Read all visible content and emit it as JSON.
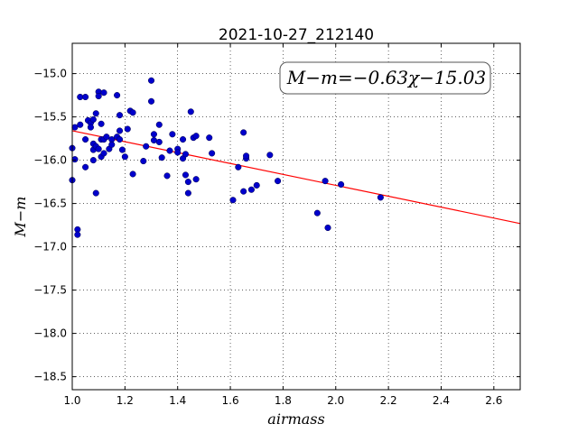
{
  "chart_data": {
    "type": "scatter",
    "title": "2021-10-27_212140",
    "xlabel": "airmass",
    "ylabel": "M−m",
    "xlim": [
      1.0,
      2.7
    ],
    "ylim": [
      -18.65,
      -14.65
    ],
    "y_inverted": true,
    "x_ticks": [
      "1.0",
      "1.2",
      "1.4",
      "1.6",
      "1.8",
      "2.0",
      "2.2",
      "2.4",
      "2.6"
    ],
    "y_ticks": [
      "−15.0",
      "−15.5",
      "−16.0",
      "−16.5",
      "−17.0",
      "−17.5",
      "−18.0",
      "−18.5"
    ],
    "grid": true,
    "annotation": "M−m=−0.63χ−15.03",
    "fit_line": {
      "slope": -0.63,
      "intercept": -15.03,
      "color": "#ff0000"
    },
    "point_color": "#0000cc",
    "points": [
      {
        "x": 1.0,
        "y": -15.86
      },
      {
        "x": 1.0,
        "y": -16.23
      },
      {
        "x": 1.01,
        "y": -15.99
      },
      {
        "x": 1.01,
        "y": -15.62
      },
      {
        "x": 1.02,
        "y": -16.8
      },
      {
        "x": 1.02,
        "y": -16.86
      },
      {
        "x": 1.03,
        "y": -15.27
      },
      {
        "x": 1.03,
        "y": -15.59
      },
      {
        "x": 1.05,
        "y": -15.27
      },
      {
        "x": 1.05,
        "y": -15.76
      },
      {
        "x": 1.05,
        "y": -16.08
      },
      {
        "x": 1.06,
        "y": -15.54
      },
      {
        "x": 1.07,
        "y": -15.57
      },
      {
        "x": 1.07,
        "y": -15.62
      },
      {
        "x": 1.08,
        "y": -15.53
      },
      {
        "x": 1.08,
        "y": -15.81
      },
      {
        "x": 1.08,
        "y": -15.88
      },
      {
        "x": 1.08,
        "y": -16.0
      },
      {
        "x": 1.09,
        "y": -15.46
      },
      {
        "x": 1.09,
        "y": -15.84
      },
      {
        "x": 1.09,
        "y": -16.38
      },
      {
        "x": 1.1,
        "y": -15.21
      },
      {
        "x": 1.1,
        "y": -15.26
      },
      {
        "x": 1.1,
        "y": -15.87
      },
      {
        "x": 1.11,
        "y": -15.58
      },
      {
        "x": 1.11,
        "y": -15.76
      },
      {
        "x": 1.11,
        "y": -15.96
      },
      {
        "x": 1.12,
        "y": -15.22
      },
      {
        "x": 1.12,
        "y": -15.76
      },
      {
        "x": 1.12,
        "y": -15.92
      },
      {
        "x": 1.13,
        "y": -15.73
      },
      {
        "x": 1.14,
        "y": -15.87
      },
      {
        "x": 1.15,
        "y": -15.76
      },
      {
        "x": 1.15,
        "y": -15.82
      },
      {
        "x": 1.17,
        "y": -15.25
      },
      {
        "x": 1.17,
        "y": -15.73
      },
      {
        "x": 1.18,
        "y": -15.48
      },
      {
        "x": 1.18,
        "y": -15.76
      },
      {
        "x": 1.18,
        "y": -15.66
      },
      {
        "x": 1.19,
        "y": -15.88
      },
      {
        "x": 1.2,
        "y": -15.96
      },
      {
        "x": 1.21,
        "y": -15.64
      },
      {
        "x": 1.22,
        "y": -15.43
      },
      {
        "x": 1.23,
        "y": -15.45
      },
      {
        "x": 1.23,
        "y": -16.16
      },
      {
        "x": 1.27,
        "y": -16.01
      },
      {
        "x": 1.28,
        "y": -15.84
      },
      {
        "x": 1.3,
        "y": -15.08
      },
      {
        "x": 1.3,
        "y": -15.32
      },
      {
        "x": 1.31,
        "y": -15.7
      },
      {
        "x": 1.31,
        "y": -15.77
      },
      {
        "x": 1.33,
        "y": -15.59
      },
      {
        "x": 1.33,
        "y": -15.79
      },
      {
        "x": 1.34,
        "y": -15.97
      },
      {
        "x": 1.36,
        "y": -16.18
      },
      {
        "x": 1.37,
        "y": -15.89
      },
      {
        "x": 1.38,
        "y": -15.7
      },
      {
        "x": 1.4,
        "y": -15.87
      },
      {
        "x": 1.4,
        "y": -15.91
      },
      {
        "x": 1.42,
        "y": -15.76
      },
      {
        "x": 1.42,
        "y": -15.98
      },
      {
        "x": 1.43,
        "y": -15.93
      },
      {
        "x": 1.43,
        "y": -16.17
      },
      {
        "x": 1.44,
        "y": -16.25
      },
      {
        "x": 1.44,
        "y": -16.38
      },
      {
        "x": 1.45,
        "y": -15.44
      },
      {
        "x": 1.46,
        "y": -15.74
      },
      {
        "x": 1.47,
        "y": -15.72
      },
      {
        "x": 1.47,
        "y": -16.22
      },
      {
        "x": 1.52,
        "y": -15.74
      },
      {
        "x": 1.53,
        "y": -15.92
      },
      {
        "x": 1.61,
        "y": -16.46
      },
      {
        "x": 1.63,
        "y": -16.08
      },
      {
        "x": 1.65,
        "y": -15.68
      },
      {
        "x": 1.65,
        "y": -16.36
      },
      {
        "x": 1.66,
        "y": -15.98
      },
      {
        "x": 1.66,
        "y": -15.95
      },
      {
        "x": 1.68,
        "y": -16.34
      },
      {
        "x": 1.7,
        "y": -16.29
      },
      {
        "x": 1.75,
        "y": -15.94
      },
      {
        "x": 1.78,
        "y": -16.24
      },
      {
        "x": 1.93,
        "y": -16.61
      },
      {
        "x": 1.96,
        "y": -16.24
      },
      {
        "x": 1.97,
        "y": -16.78
      },
      {
        "x": 2.02,
        "y": -16.28
      },
      {
        "x": 2.17,
        "y": -16.43
      }
    ]
  }
}
